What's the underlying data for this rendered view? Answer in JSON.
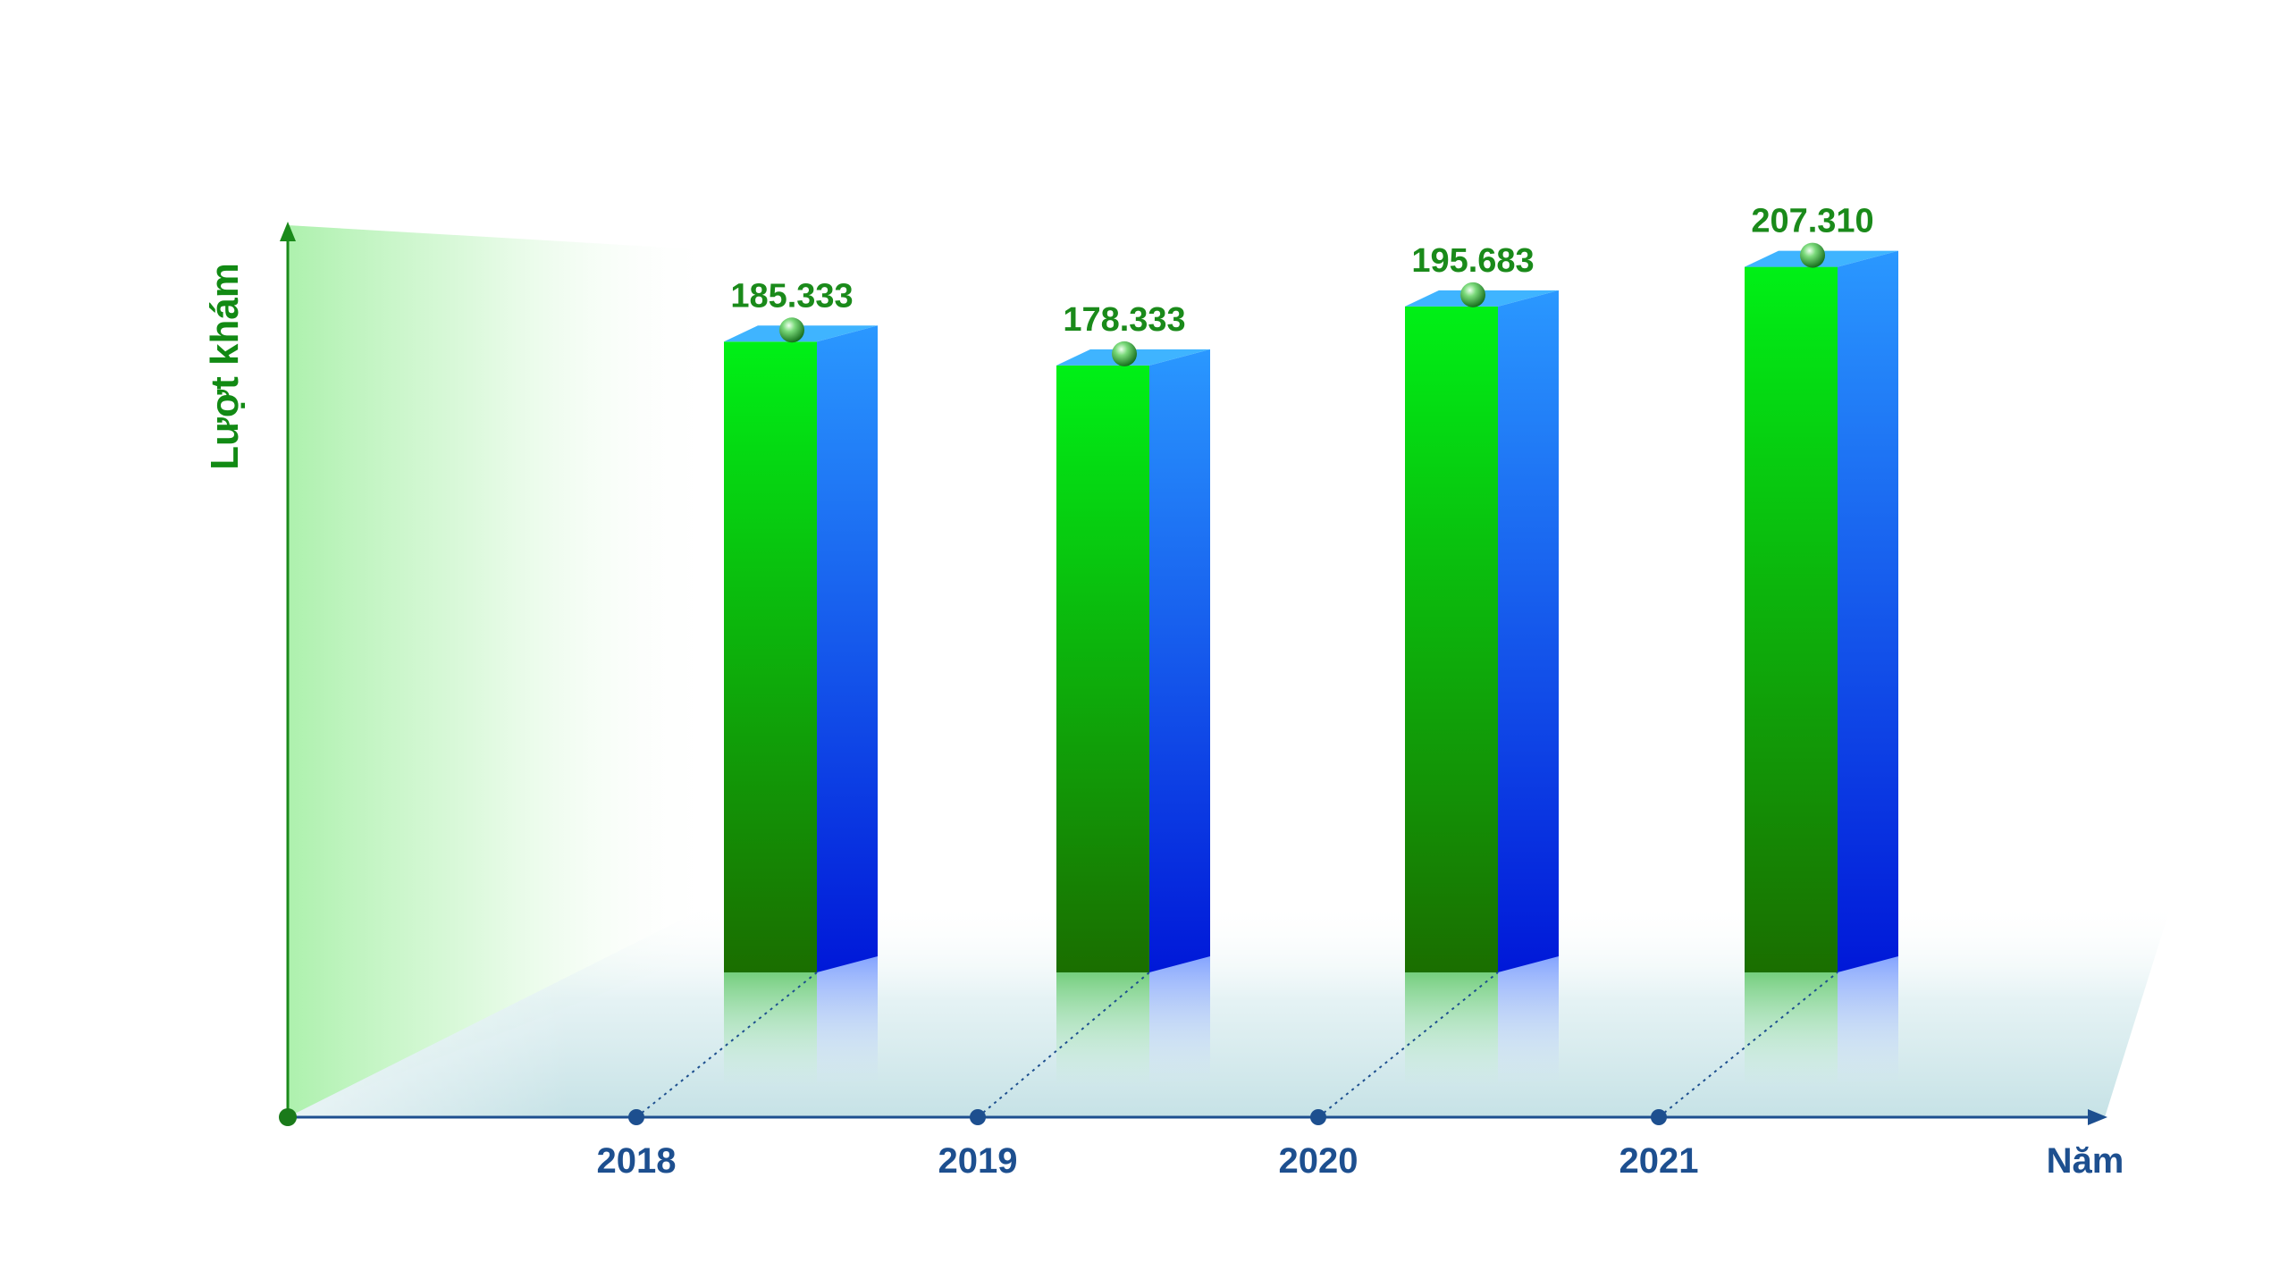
{
  "chart_data": {
    "type": "bar",
    "categories": [
      "2018",
      "2019",
      "2020",
      "2021"
    ],
    "values": [
      185333,
      178333,
      195683,
      207310
    ],
    "value_labels": [
      "185.333",
      "178.333",
      "195.683",
      "207.310"
    ],
    "xlabel": "Năm",
    "ylabel": "Lượt khám",
    "ylim": [
      0,
      250000
    ],
    "grid": false,
    "legend": "none",
    "colors": {
      "bar_front_top": "#00f016",
      "bar_front_bottom": "#1a6e00",
      "bar_side_top": "#2a98ff",
      "bar_side_bottom": "#0018d8",
      "bar_top": "#3fb4ff",
      "y_axis": "#1a8a1a",
      "x_axis": "#1d4f8f",
      "data_label": "#1a8a1a",
      "tick_label": "#1d4f8f"
    }
  }
}
